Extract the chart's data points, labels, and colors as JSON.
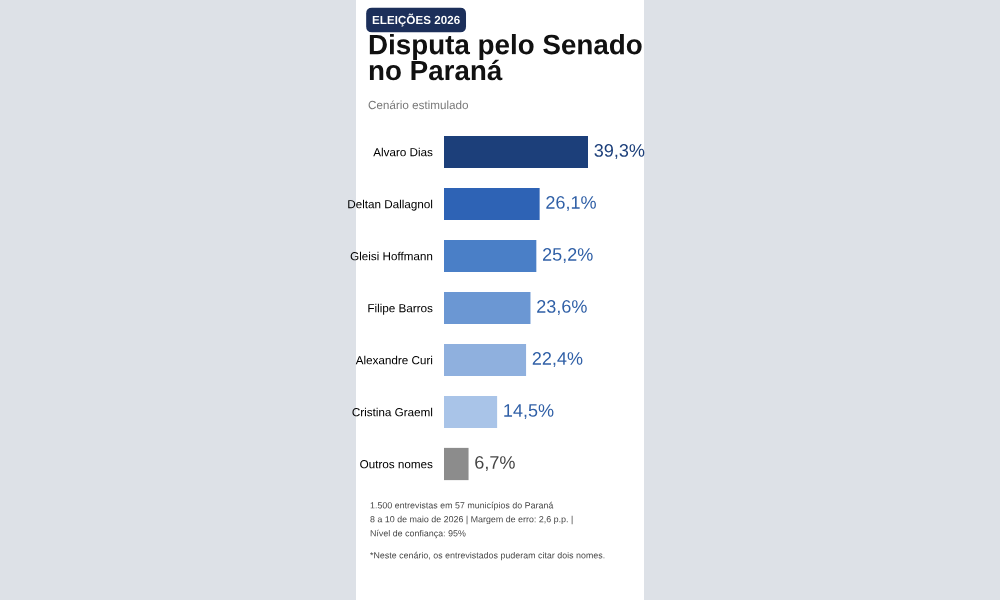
{
  "chart_data": {
    "type": "bar",
    "orientation": "horizontal",
    "title": "Disputa pelo Senado\nno Paraná",
    "subtitle": "Cenário estimulado",
    "categories": [
      "Alvaro Dias",
      "Deltan Dallagnol",
      "Gleisi Hoffmann",
      "Filipe Barros",
      "Alexandre Curi",
      "Cristina Graeml",
      "Outros nomes"
    ],
    "values": [
      39.3,
      26.1,
      25.2,
      23.6,
      22.4,
      14.5,
      6.7
    ],
    "colors": [
      "#1c3f7a",
      "#2e63b5",
      "#4a7fc7",
      "#6b97d3",
      "#8fb0de",
      "#a9c4e8",
      "#8c8c8c"
    ],
    "value_labels": [
      "39,3%",
      "26,1%",
      "25,2%",
      "23,6%",
      "22,4%",
      "14,5%",
      "6,7%"
    ],
    "tick_labels": "y",
    "grid": false,
    "legend": false,
    "annotations": [
      "ELEIÇÕES 2026",
      "1.500 entrevistas em 57 municípios do Paraná",
      "8 a 10 de maio de 2026 | Margem de erro: 2,6 p.p. |",
      "Nível de confiança: 95%",
      "*Neste cenário, os entrevistados puderam citar dois nomes."
    ]
  }
}
